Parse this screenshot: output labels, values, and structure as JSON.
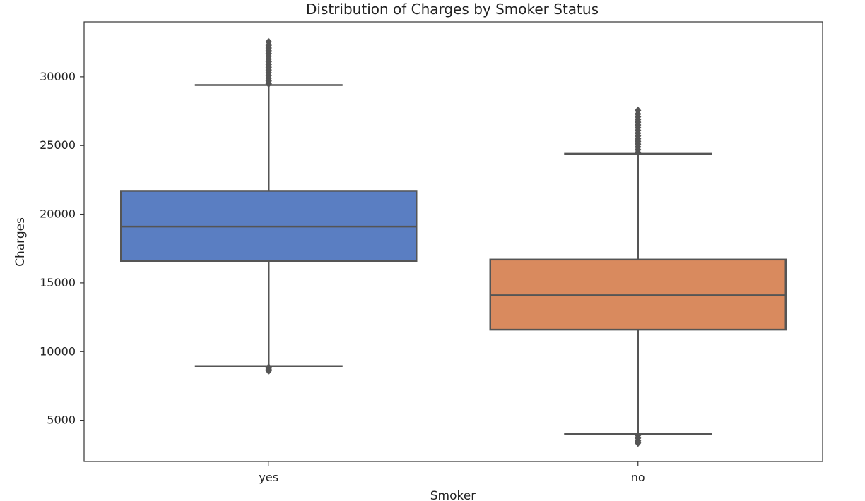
{
  "chart_data": {
    "type": "box",
    "title": "Distribution of Charges by Smoker Status",
    "xlabel": "Smoker",
    "ylabel": "Charges",
    "categories": [
      "yes",
      "no"
    ],
    "yticks": [
      5000,
      10000,
      15000,
      20000,
      25000,
      30000
    ],
    "ylim": [
      2000,
      34000
    ],
    "grid": false,
    "boxes": [
      {
        "category": "yes",
        "color": "#5a7ec2",
        "whisker_low": 8950,
        "q1": 16600,
        "median": 19100,
        "q3": 21700,
        "whisker_high": 29400,
        "outliers_low": [
          8850,
          8720,
          8600
        ],
        "outliers_high": [
          29500,
          29700,
          29900,
          30100,
          30300,
          30500,
          30700,
          30900,
          31100,
          31300,
          31500,
          31700,
          31900,
          32100,
          32300,
          32550
        ]
      },
      {
        "category": "no",
        "color": "#d98a5e",
        "whisker_low": 4000,
        "q1": 11600,
        "median": 14100,
        "q3": 16700,
        "whisker_high": 24400,
        "outliers_low": [
          3900,
          3700,
          3500,
          3350
        ],
        "outliers_high": [
          24500,
          24700,
          24900,
          25100,
          25300,
          25500,
          25700,
          25900,
          26100,
          26300,
          26500,
          26700,
          26900,
          27100,
          27300,
          27550
        ]
      }
    ]
  }
}
